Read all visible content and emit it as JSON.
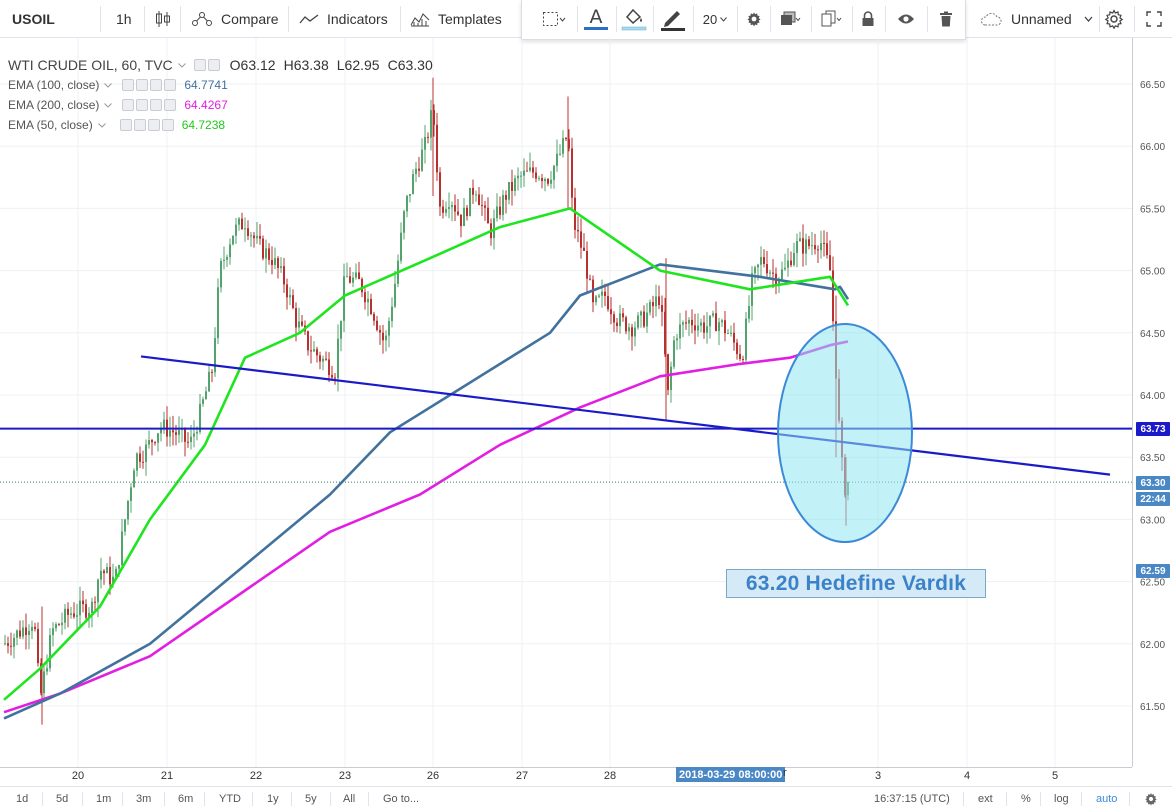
{
  "toolbar": {
    "symbol": "USOIL",
    "interval": "1h",
    "compare": "Compare",
    "indicators": "Indicators",
    "templates": "Templates",
    "layout_name": "Unnamed"
  },
  "drawing_toolbar": {
    "line_width": "20"
  },
  "legend": {
    "title": "WTI CRUDE OIL, 60, TVC",
    "open": "O63.12",
    "high": "H63.38",
    "low": "L62.95",
    "close": "C63.30",
    "indicators": [
      {
        "label": "EMA (100, close)",
        "value": "64.7741",
        "color": "#41729d"
      },
      {
        "label": "EMA (200, close)",
        "value": "64.4267",
        "color": "#e11ee2"
      },
      {
        "label": "EMA (50, close)",
        "value": "64.7238",
        "color": "#1ee51e"
      }
    ]
  },
  "annotation": {
    "text": "63.20 Hedefine Vardık"
  },
  "price_axis": {
    "ticks": [
      "66.50",
      "66.00",
      "65.50",
      "65.00",
      "64.50",
      "64.00",
      "63.50",
      "63.00",
      "62.50",
      "62.00",
      "61.50"
    ],
    "tags": [
      {
        "label": "63.73",
        "color": "#1a1ac8"
      },
      {
        "label": "63.30",
        "color": "#4a87c5"
      },
      {
        "label": "22:44",
        "color": "#4a87c5"
      },
      {
        "label": "62.59",
        "color": "#4a87c5"
      }
    ]
  },
  "time_axis": {
    "ticks": [
      "20",
      "21",
      "22",
      "23",
      "26",
      "27",
      "28",
      "3",
      "4",
      "5"
    ],
    "crosshair_label": "2018-03-29 08:00:00",
    "partial_label": "r"
  },
  "bottom_bar": {
    "ranges": [
      "1d",
      "5d",
      "1m",
      "3m",
      "6m",
      "YTD",
      "1y",
      "5y",
      "All"
    ],
    "goto": "Go to...",
    "clock": "16:37:15 (UTC)",
    "ext": "ext",
    "percent": "%",
    "log": "log",
    "auto": "auto"
  },
  "colors": {
    "ema50": "#1ee51e",
    "ema100": "#41729d",
    "ema200": "#e11ee2",
    "trend_line": "#1a1ac8",
    "candle_up": "#53a36c",
    "candle_down": "#b8312f",
    "highlight_circle": "#8fe6f0"
  },
  "chart_data": {
    "type": "candlestick",
    "symbol": "WTI CRUDE OIL, 60, TVC",
    "ylim": [
      61.2,
      66.7
    ],
    "series": [
      {
        "name": "EMA (50, close)",
        "values": [
          61.55,
          61.8,
          62.3,
          63.0,
          63.6,
          64.3,
          64.5,
          64.8,
          65.1,
          65.35,
          65.5,
          65.0,
          64.85,
          64.95,
          64.72
        ]
      },
      {
        "name": "EMA (100, close)",
        "values": [
          61.4,
          61.6,
          62.0,
          62.6,
          63.2,
          63.7,
          64.1,
          64.5,
          64.8,
          65.05,
          64.95,
          64.85,
          64.87,
          64.77
        ]
      },
      {
        "name": "EMA (200, close)",
        "values": [
          61.45,
          61.6,
          61.9,
          62.4,
          62.9,
          63.2,
          63.6,
          63.9,
          64.15,
          64.25,
          64.3,
          64.4,
          64.43
        ]
      }
    ],
    "horizontal_line": 63.73,
    "last_close": 63.3
  }
}
